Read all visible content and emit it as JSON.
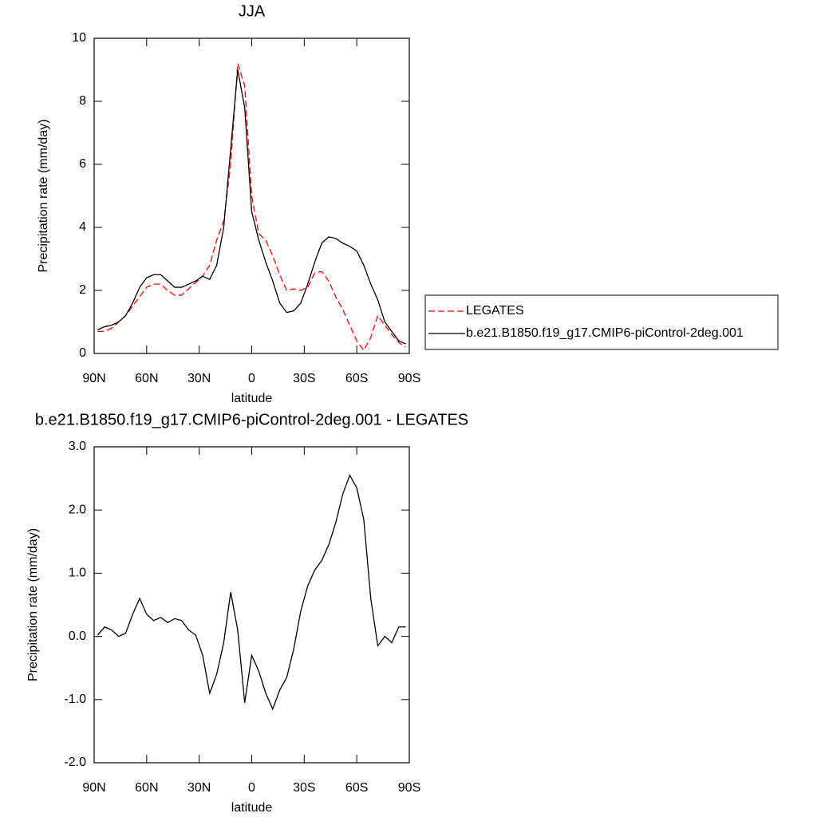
{
  "chart_data": [
    {
      "type": "line",
      "title": "JJA",
      "xlabel": "latitude",
      "ylabel": "Precipitation rate (mm/day)",
      "x": [
        88,
        84,
        80,
        76,
        72,
        68,
        64,
        60,
        56,
        52,
        48,
        44,
        40,
        36,
        32,
        28,
        24,
        20,
        16,
        12,
        8,
        4,
        0,
        -4,
        -8,
        -12,
        -16,
        -20,
        -24,
        -28,
        -32,
        -36,
        -40,
        -44,
        -48,
        -52,
        -56,
        -60,
        -64,
        -68,
        -72,
        -76,
        -80,
        -84,
        -88
      ],
      "xlim": [
        90,
        -90
      ],
      "xticks": [
        {
          "value": 90,
          "label": "90N"
        },
        {
          "value": 60,
          "label": "60N"
        },
        {
          "value": 30,
          "label": "30N"
        },
        0,
        {
          "value": -30,
          "label": "30S"
        },
        {
          "value": -60,
          "label": "60S"
        },
        {
          "value": -90,
          "label": "90S"
        }
      ],
      "ylim": [
        0,
        10
      ],
      "yticks": [
        0,
        2,
        4,
        6,
        8,
        10
      ],
      "legend": "outside-right",
      "series": [
        {
          "name": "LEGATES",
          "color": "#ff0000",
          "dash": true,
          "values": [
            0.7,
            0.7,
            0.8,
            1.0,
            1.2,
            1.5,
            1.8,
            2.1,
            2.2,
            2.2,
            2.0,
            1.85,
            1.85,
            2.05,
            2.25,
            2.45,
            2.8,
            3.6,
            4.2,
            6.0,
            9.2,
            8.5,
            5.0,
            3.8,
            3.6,
            3.1,
            2.5,
            2.0,
            2.05,
            2.0,
            2.1,
            2.55,
            2.6,
            2.3,
            1.8,
            1.4,
            0.9,
            0.4,
            0.1,
            0.5,
            1.2,
            0.9,
            0.6,
            0.35,
            0.2
          ]
        },
        {
          "name": "b.e21.B1850.f19_g17.CMIP6-piControl-2deg.001",
          "color": "#000000",
          "dash": false,
          "values": [
            0.75,
            0.85,
            0.9,
            1.0,
            1.2,
            1.6,
            2.1,
            2.4,
            2.5,
            2.5,
            2.3,
            2.1,
            2.1,
            2.2,
            2.3,
            2.45,
            2.35,
            2.8,
            4.0,
            6.5,
            9.0,
            7.8,
            4.5,
            3.6,
            2.9,
            2.3,
            1.6,
            1.3,
            1.35,
            1.6,
            2.2,
            2.9,
            3.5,
            3.7,
            3.65,
            3.5,
            3.4,
            3.25,
            2.8,
            2.2,
            1.7,
            1.0,
            0.7,
            0.4,
            0.3
          ]
        }
      ]
    },
    {
      "type": "line",
      "title": "b.e21.B1850.f19_g17.CMIP6-piControl-2deg.001 - LEGATES",
      "xlabel": "latitude",
      "ylabel": "Precipitation rate (mm/day)",
      "x": [
        88,
        84,
        80,
        76,
        72,
        68,
        64,
        60,
        56,
        52,
        48,
        44,
        40,
        36,
        32,
        28,
        24,
        20,
        16,
        12,
        8,
        4,
        0,
        -4,
        -8,
        -12,
        -16,
        -20,
        -24,
        -28,
        -32,
        -36,
        -40,
        -44,
        -48,
        -52,
        -56,
        -60,
        -64,
        -68,
        -72,
        -76,
        -80,
        -84,
        -88
      ],
      "xlim": [
        90,
        -90
      ],
      "xticks": [
        {
          "value": 90,
          "label": "90N"
        },
        {
          "value": 60,
          "label": "60N"
        },
        {
          "value": 30,
          "label": "30N"
        },
        0,
        {
          "value": -30,
          "label": "30S"
        },
        {
          "value": -60,
          "label": "60S"
        },
        {
          "value": -90,
          "label": "90S"
        }
      ],
      "ylim": [
        -2,
        3
      ],
      "yticks": [
        {
          "value": -2,
          "label": "-2.0"
        },
        {
          "value": -1,
          "label": "-1.0"
        },
        {
          "value": 0,
          "label": "0.0"
        },
        {
          "value": 1,
          "label": "1.0"
        },
        {
          "value": 2,
          "label": "2.0"
        },
        {
          "value": 3,
          "label": "3.0"
        }
      ],
      "series": [
        {
          "color": "#000000",
          "dash": false,
          "values": [
            0.02,
            0.15,
            0.1,
            0.0,
            0.05,
            0.35,
            0.6,
            0.35,
            0.25,
            0.3,
            0.22,
            0.28,
            0.25,
            0.1,
            0.02,
            -0.3,
            -0.9,
            -0.6,
            -0.1,
            0.7,
            0.1,
            -1.05,
            -0.3,
            -0.55,
            -0.9,
            -1.15,
            -0.85,
            -0.65,
            -0.2,
            0.4,
            0.8,
            1.05,
            1.2,
            1.45,
            1.8,
            2.25,
            2.55,
            2.35,
            1.85,
            0.6,
            -0.15,
            0.0,
            -0.1,
            0.15,
            0.15
          ]
        }
      ]
    }
  ]
}
